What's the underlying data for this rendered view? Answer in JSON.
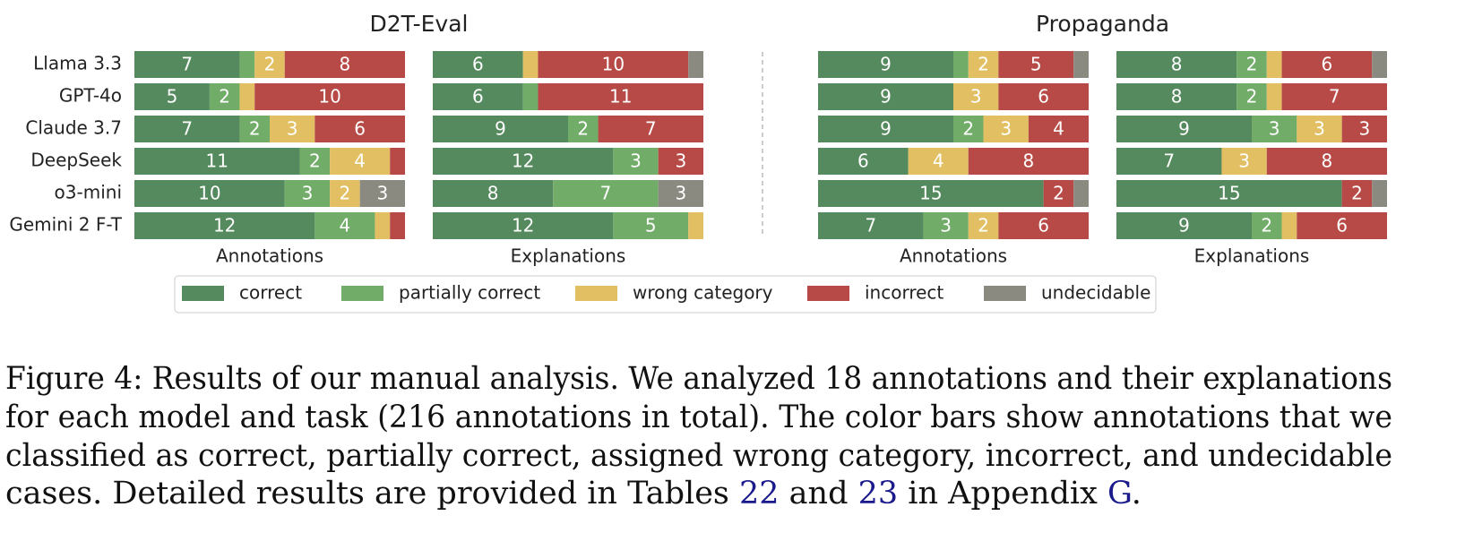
{
  "chart_data": {
    "type": "bar",
    "stacked": true,
    "orientation": "horizontal",
    "categories": [
      "Llama 3.3",
      "GPT-4o",
      "Claude 3.7",
      "DeepSeek",
      "o3-mini",
      "Gemini 2 F-T"
    ],
    "series": [
      {
        "name": "correct",
        "color": "#548a5e"
      },
      {
        "name": "partially correct",
        "color": "#71ac68"
      },
      {
        "name": "wrong category",
        "color": "#e2bf62"
      },
      {
        "name": "incorrect",
        "color": "#b74a46"
      },
      {
        "name": "undecidable",
        "color": "#8b8a80"
      }
    ],
    "groups": [
      {
        "title": "D2T-Eval",
        "panels": [
          {
            "xlabel": "Annotations",
            "values": [
              [
                7,
                5,
                7,
                11,
                10,
                12
              ],
              [
                1,
                2,
                2,
                2,
                3,
                4
              ],
              [
                2,
                1,
                3,
                4,
                2,
                1
              ],
              [
                8,
                10,
                6,
                1,
                0,
                1
              ],
              [
                0,
                0,
                0,
                0,
                3,
                0
              ]
            ]
          },
          {
            "xlabel": "Explanations",
            "values": [
              [
                6,
                6,
                9,
                12,
                8,
                12
              ],
              [
                0,
                1,
                2,
                3,
                7,
                5
              ],
              [
                1,
                0,
                0,
                0,
                0,
                1
              ],
              [
                10,
                11,
                7,
                3,
                0,
                0
              ],
              [
                1,
                0,
                0,
                0,
                3,
                0
              ]
            ]
          }
        ]
      },
      {
        "title": "Propaganda",
        "panels": [
          {
            "xlabel": "Annotations",
            "values": [
              [
                9,
                9,
                9,
                6,
                15,
                7
              ],
              [
                1,
                0,
                2,
                0,
                0,
                3
              ],
              [
                2,
                3,
                3,
                4,
                0,
                2
              ],
              [
                5,
                6,
                4,
                8,
                2,
                6
              ],
              [
                1,
                0,
                0,
                0,
                1,
                0
              ]
            ]
          },
          {
            "xlabel": "Explanations",
            "values": [
              [
                8,
                8,
                9,
                7,
                15,
                9
              ],
              [
                2,
                2,
                3,
                0,
                0,
                2
              ],
              [
                1,
                1,
                3,
                3,
                0,
                1
              ],
              [
                6,
                7,
                3,
                8,
                2,
                6
              ],
              [
                1,
                0,
                0,
                0,
                1,
                0
              ]
            ]
          }
        ]
      }
    ]
  },
  "caption": {
    "lines": [
      "Figure 4: Results of our manual analysis. We analyzed 18 annotations and their explanations",
      "for each model and task (216 annotations in total). The color bars show annotations that we",
      "classified as correct, partially correct, assigned wrong category, incorrect, and undecidable"
    ],
    "last": [
      "cases. Detailed results are provided in Tables ",
      "22",
      " and ",
      "23",
      " in Appendix ",
      "G",
      "."
    ]
  }
}
